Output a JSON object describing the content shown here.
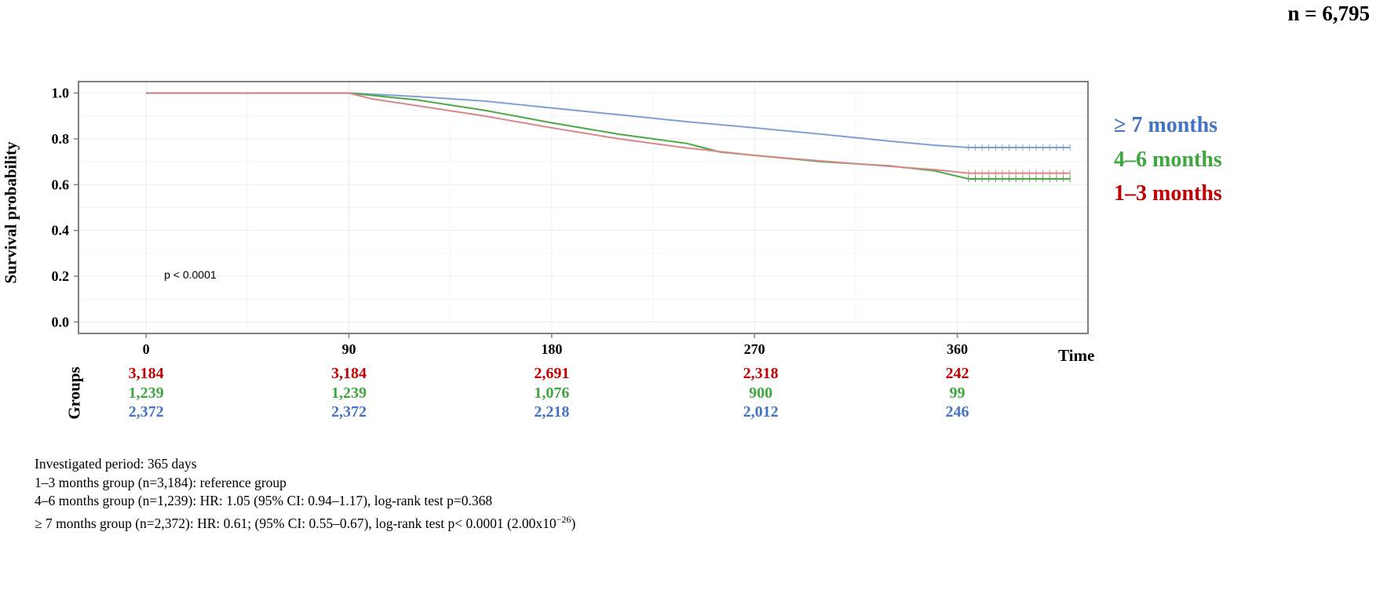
{
  "header": {
    "n_total": "n = 6,795"
  },
  "chart_data": {
    "type": "line",
    "subtype": "kaplan-meier",
    "xlabel": "Time",
    "ylabel": "Survival probability",
    "xlim": [
      -30,
      418
    ],
    "ylim": [
      -0.05,
      1.05
    ],
    "xticks": [
      0,
      90,
      180,
      270,
      360
    ],
    "yticks": [
      0.0,
      0.2,
      0.4,
      0.6,
      0.8,
      1.0
    ],
    "ytick_labels": [
      "0.0",
      "0.2",
      "0.4",
      "0.6",
      "0.8",
      "1.0"
    ],
    "grid": true,
    "annotation": "p < 0.0001",
    "legend_position": "right",
    "series": [
      {
        "name": "≥ 7 months",
        "color": "#7f9fd4",
        "label_color": "#4472c4",
        "x": [
          0,
          90,
          100,
          120,
          150,
          180,
          210,
          240,
          270,
          300,
          330,
          350,
          365
        ],
        "y": [
          1.0,
          1.0,
          0.995,
          0.985,
          0.965,
          0.935,
          0.905,
          0.875,
          0.848,
          0.82,
          0.79,
          0.772,
          0.762
        ],
        "censored_from": 365,
        "censored_to": 410
      },
      {
        "name": "4–6 months",
        "color": "#4aa843",
        "label_color": "#3fa73f",
        "x": [
          0,
          90,
          100,
          120,
          150,
          180,
          210,
          240,
          255,
          270,
          300,
          330,
          350,
          365
        ],
        "y": [
          1.0,
          1.0,
          0.99,
          0.97,
          0.925,
          0.87,
          0.82,
          0.78,
          0.742,
          0.728,
          0.7,
          0.682,
          0.66,
          0.625
        ],
        "censored_from": 365,
        "censored_to": 410
      },
      {
        "name": "1–3 months",
        "color": "#d88888",
        "label_color": "#c00000",
        "x": [
          0,
          90,
          100,
          120,
          150,
          180,
          210,
          240,
          270,
          300,
          330,
          350,
          365
        ],
        "y": [
          1.0,
          1.0,
          0.975,
          0.945,
          0.9,
          0.848,
          0.8,
          0.76,
          0.728,
          0.703,
          0.68,
          0.665,
          0.65
        ],
        "censored_from": 365,
        "censored_to": 410
      }
    ]
  },
  "risk_table": {
    "label": "Groups",
    "times": [
      0,
      90,
      180,
      270,
      360
    ],
    "rows": [
      {
        "color": "#c00000",
        "values": [
          "3,184",
          "3,184",
          "2,691",
          "2,318",
          "242"
        ]
      },
      {
        "color": "#3fa73f",
        "values": [
          "1,239",
          "1,239",
          "1,076",
          "900",
          "99"
        ]
      },
      {
        "color": "#4472c4",
        "values": [
          "2,372",
          "2,372",
          "2,218",
          "2,012",
          "246"
        ]
      }
    ]
  },
  "notes": {
    "line1": "Investigated  period:  365 days",
    "line2": "1–3 months  group  (n=3,184):  reference  group",
    "line3": "4–6 months  group (n=1,239):  HR:  1.05 (95% CI:  0.94–1.17),  log-rank  test  p=0.368",
    "line4_main": "≥ 7 months  group (n=2,372):  HR:  0.61;  (95% CI:  0.55–0.67),  log-rank  test  p< 0.0001  (2.00x10",
    "line4_exp": "−26",
    "line4_end": ")"
  }
}
